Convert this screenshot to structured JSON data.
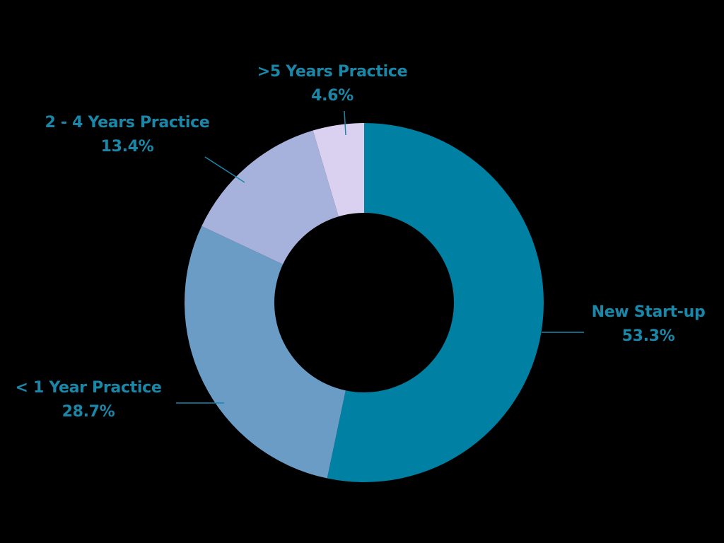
{
  "chart_data": {
    "type": "pie",
    "subtype": "donut",
    "title": "",
    "start_angle_deg": 0,
    "direction": "clockwise",
    "legend": "none (direct labels with leader lines)",
    "slices": [
      {
        "label": "New Start-up",
        "value": 53.3,
        "display": "53.3%",
        "color": "#0081a4"
      },
      {
        "label": "< 1 Year Practice",
        "value": 28.7,
        "display": "28.7%",
        "color": "#6a9cc6"
      },
      {
        "label": "2 - 4 Years Practice",
        "value": 13.4,
        "display": "13.4%",
        "color": "#a6b1dc"
      },
      {
        "label": ">5 Years Practice",
        "value": 4.6,
        "display": "4.6%",
        "color": "#dad1f0"
      }
    ]
  },
  "style": {
    "background": "#000000",
    "label_color": "#1a87a8",
    "leader_color": "#1a87a8"
  }
}
